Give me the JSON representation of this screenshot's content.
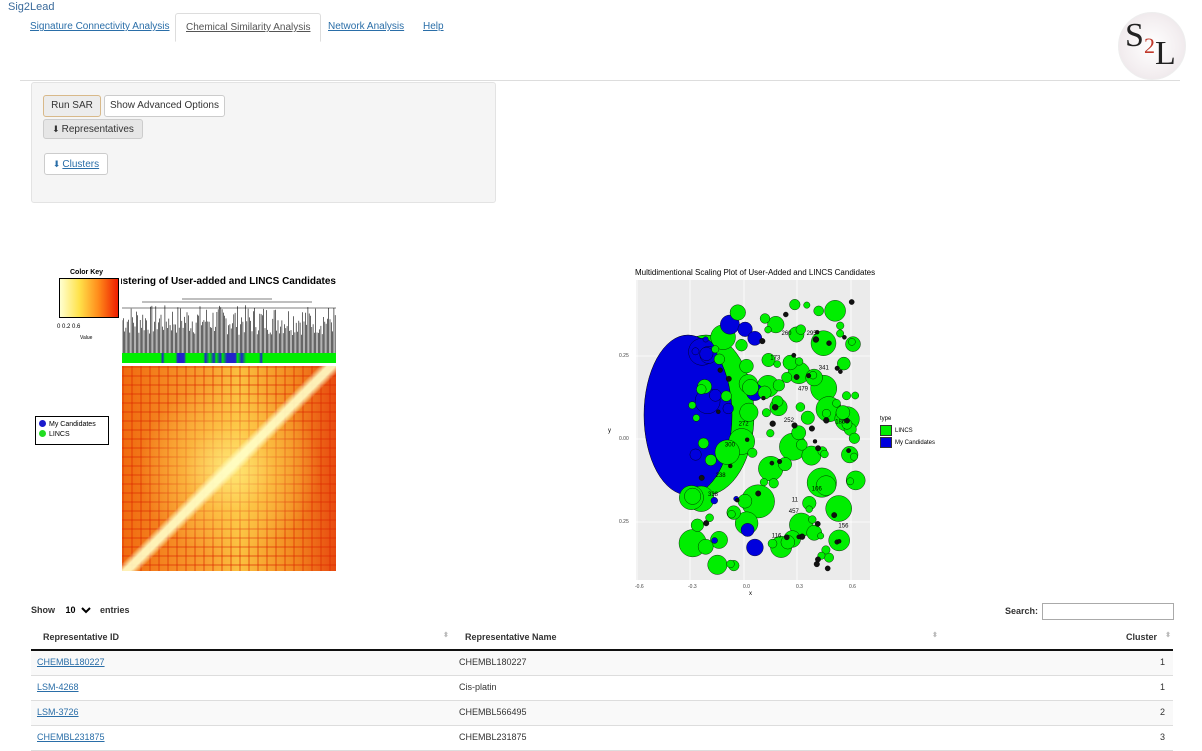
{
  "app": {
    "title": "Sig2Lead",
    "logo_text_s": "S",
    "logo_text_2": "2",
    "logo_text_l": "L"
  },
  "tabs": [
    {
      "label": "Signature Connectivity Analysis"
    },
    {
      "label": "Chemical Similarity Analysis"
    },
    {
      "label": "Network Analysis"
    },
    {
      "label": "Help"
    }
  ],
  "controls": {
    "run_sar": "Run SAR",
    "show_advanced": "Show Advanced Options",
    "representatives": "Representatives",
    "clusters": "Clusters"
  },
  "heatmap": {
    "color_key_title": "Color Key",
    "color_key_ticks": "0  0.2   0.6",
    "color_key_value": "Value",
    "title": "Clustering of User-added and LINCS Candidates",
    "legend": [
      {
        "label": "My Candidates",
        "color": "#1a1acc"
      },
      {
        "label": "LINCS",
        "color": "#22dd22"
      }
    ]
  },
  "mds": {
    "title": "Multidimentional Scaling Plot of User-Added and LINCS Candidates",
    "xlabel": "x",
    "ylabel": "y",
    "y_ticks": [
      "0.25",
      "0.00",
      "0.25"
    ],
    "x_ticks": [
      "-0.6",
      "-0.3",
      "0.0",
      "0.3",
      "0.6"
    ],
    "legend_title": "type",
    "legend": [
      {
        "label": "LINCS",
        "color": "#00ee00"
      },
      {
        "label": "My Candidates",
        "color": "#0000dd"
      }
    ],
    "point_labels": [
      "260",
      "338",
      "238",
      "272",
      "252",
      "295",
      "341",
      "106",
      "116",
      "457",
      "156",
      "479",
      "186",
      "173",
      "11",
      "300"
    ]
  },
  "table": {
    "show_prefix": "Show",
    "show_value": "10",
    "show_suffix": "entries",
    "search_label": "Search:",
    "search_value": "",
    "columns": [
      "Representative ID",
      "Representative Name",
      "Cluster"
    ],
    "rows": [
      {
        "id": "CHEMBL180227",
        "name": "CHEMBL180227",
        "cluster": "1"
      },
      {
        "id": "LSM-4268",
        "name": "Cis-platin",
        "cluster": "1"
      },
      {
        "id": "LSM-3726",
        "name": "CHEMBL566495",
        "cluster": "2"
      },
      {
        "id": "CHEMBL231875",
        "name": "CHEMBL231875",
        "cluster": "3"
      }
    ]
  }
}
